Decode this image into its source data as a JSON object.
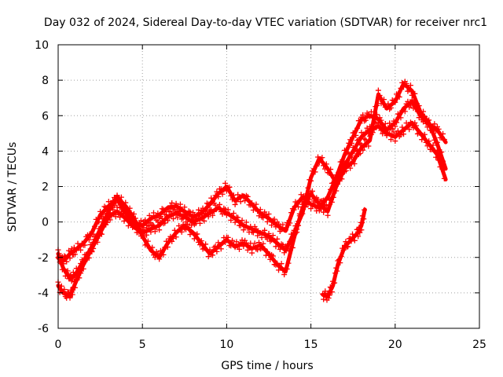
{
  "chart_data": {
    "type": "scatter",
    "title": "Day 032 of 2024, Sidereal Day-to-day VTEC variation (SDTVAR) for receiver nrc1",
    "xlabel": "GPS time / hours",
    "ylabel": "SDTVAR / TECUs",
    "xlim": [
      0,
      25
    ],
    "ylim": [
      -6,
      10
    ],
    "x_ticks": [
      0,
      5,
      10,
      15,
      20,
      25
    ],
    "y_ticks": [
      -6,
      -4,
      -2,
      0,
      2,
      4,
      6,
      8,
      10
    ],
    "grid": true,
    "legend": "none",
    "marker": "+",
    "color": "#ff0000",
    "series": [
      {
        "name": "trace-1",
        "x": [
          0,
          0.3,
          0.7,
          1.0,
          1.5,
          2.0,
          2.5,
          3.0,
          3.5,
          4.0,
          4.5,
          5.0,
          5.5,
          6.0,
          6.5,
          7.0,
          7.5,
          8.0,
          8.5,
          9.0,
          9.5,
          10.0,
          10.5,
          11.0,
          11.5,
          12.0,
          12.5,
          13.0,
          13.5,
          14.0,
          14.5,
          15.0,
          15.5,
          16.0,
          16.5,
          17.0,
          17.5,
          18.0,
          18.5,
          19.0,
          19.5,
          20.0,
          20.5,
          21.0,
          21.5,
          22.0,
          22.5,
          23.0
        ],
        "y": [
          -2.0,
          -2.2,
          -1.8,
          -1.6,
          -1.2,
          -0.6,
          0.4,
          0.9,
          1.3,
          0.5,
          0.0,
          -0.2,
          0.2,
          0.4,
          0.8,
          0.9,
          0.6,
          0.3,
          0.5,
          1.0,
          1.6,
          2.0,
          1.2,
          1.5,
          1.0,
          0.5,
          0.2,
          -0.2,
          -0.5,
          0.8,
          1.4,
          1.0,
          0.8,
          1.4,
          2.5,
          3.8,
          4.8,
          5.8,
          6.0,
          5.8,
          5.2,
          5.6,
          6.4,
          6.8,
          6.0,
          5.5,
          5.2,
          4.5
        ]
      },
      {
        "name": "trace-2",
        "x": [
          0,
          0.3,
          0.7,
          1.0,
          1.5,
          2.0,
          2.5,
          3.0,
          3.5,
          4.0,
          4.5,
          5.0,
          5.5,
          6.0,
          6.5,
          7.0,
          7.5,
          8.0,
          8.5,
          9.0,
          9.5,
          10.0,
          10.5,
          11.0,
          11.5,
          12.0,
          12.5,
          13.0,
          13.5,
          14.0,
          14.5,
          15.0,
          15.5,
          16.0,
          16.5,
          17.0,
          17.5,
          18.0,
          18.5,
          19.0,
          19.5,
          20.0,
          20.5,
          21.0,
          21.5,
          22.0,
          22.5,
          23.0
        ],
        "y": [
          -3.6,
          -4.0,
          -4.2,
          -3.5,
          -2.4,
          -1.5,
          -0.6,
          0.3,
          0.6,
          0.2,
          -0.3,
          -0.6,
          -0.4,
          -0.2,
          0.3,
          0.5,
          0.3,
          0.0,
          0.2,
          0.5,
          0.8,
          0.5,
          0.2,
          -0.2,
          -0.4,
          -0.6,
          -0.8,
          -1.2,
          -1.6,
          -0.6,
          0.5,
          2.5,
          3.6,
          3.0,
          2.2,
          3.2,
          4.0,
          4.8,
          5.2,
          5.4,
          5.0,
          4.8,
          5.2,
          5.6,
          5.0,
          4.4,
          3.8,
          2.4
        ]
      },
      {
        "name": "trace-3",
        "x": [
          0,
          0.3,
          0.7,
          1.0,
          1.5,
          2.0,
          2.5,
          3.0,
          3.5,
          4.0,
          4.5,
          5.0,
          5.5,
          6.0,
          6.5,
          7.0,
          7.5,
          8.0,
          8.5,
          9.0,
          9.5,
          10.0,
          10.5,
          11.0,
          11.5,
          12.0,
          12.5,
          13.0,
          13.5,
          14.0,
          14.5,
          15.0,
          15.5,
          16.0,
          16.5,
          17.0,
          17.5,
          18.0,
          18.5,
          19.0,
          19.5,
          20.0,
          20.5,
          21.0,
          21.5,
          22.0,
          22.5,
          23.0
        ],
        "y": [
          -1.8,
          -2.6,
          -3.2,
          -3.0,
          -2.2,
          -1.4,
          -0.4,
          0.6,
          1.4,
          0.9,
          0.2,
          -0.8,
          -1.6,
          -2.0,
          -1.2,
          -0.6,
          -0.2,
          -0.6,
          -1.2,
          -1.8,
          -1.4,
          -1.0,
          -1.4,
          -1.2,
          -1.5,
          -1.3,
          -1.8,
          -2.4,
          -2.8,
          -0.9,
          0.8,
          1.6,
          1.0,
          0.6,
          2.0,
          3.0,
          3.4,
          4.2,
          4.6,
          7.2,
          6.4,
          6.8,
          7.8,
          7.4,
          6.2,
          5.6,
          4.4,
          3.0
        ]
      },
      {
        "name": "trace-4",
        "x": [
          15.7,
          16.0,
          16.3,
          16.6,
          17.0,
          17.4,
          17.8,
          18.0,
          18.2
        ],
        "y": [
          -4.1,
          -4.2,
          -3.6,
          -2.4,
          -1.4,
          -1.0,
          -0.6,
          -0.2,
          0.7
        ]
      }
    ]
  }
}
